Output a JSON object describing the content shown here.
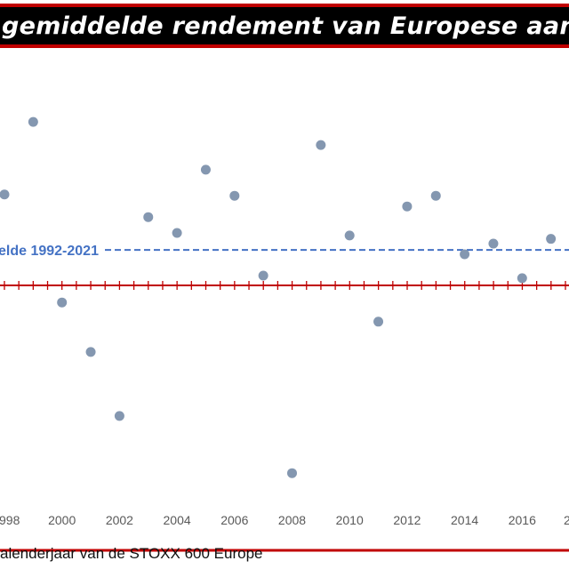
{
  "title": "gemiddelde rendement van Europese aand",
  "footer": "alenderjaar van de STOXX 600 Europe",
  "colors": {
    "points": "#8497b0",
    "zero_line": "#c00000",
    "mean_line": "#4472c4",
    "title_bg": "#000000",
    "title_border": "#c00000"
  },
  "chart_data": {
    "type": "scatter",
    "title": "gemiddelde rendement van Europese aand",
    "xlabel": "alenderjaar van de STOXX 600 Europe",
    "ylabel": "",
    "x": [
      1998,
      1999,
      2000,
      2001,
      2002,
      2003,
      2004,
      2005,
      2006,
      2007,
      2008,
      2009,
      2010,
      2011,
      2012,
      2013,
      2014,
      2015,
      2016,
      2017
    ],
    "values": [
      21.3,
      38.3,
      -4.0,
      -15.6,
      -30.6,
      16.0,
      12.3,
      27.1,
      21.0,
      2.3,
      -44.0,
      32.9,
      11.7,
      -8.5,
      18.5,
      21.0,
      7.3,
      9.8,
      1.7,
      10.9
    ],
    "x_tick_labels": [
      "998",
      "2000",
      "2002",
      "2004",
      "2006",
      "2008",
      "2010",
      "2012",
      "2014",
      "2016",
      "2"
    ],
    "mean_line": {
      "label": "elde 1992-2021",
      "value": 8.3
    },
    "grid": false
  }
}
